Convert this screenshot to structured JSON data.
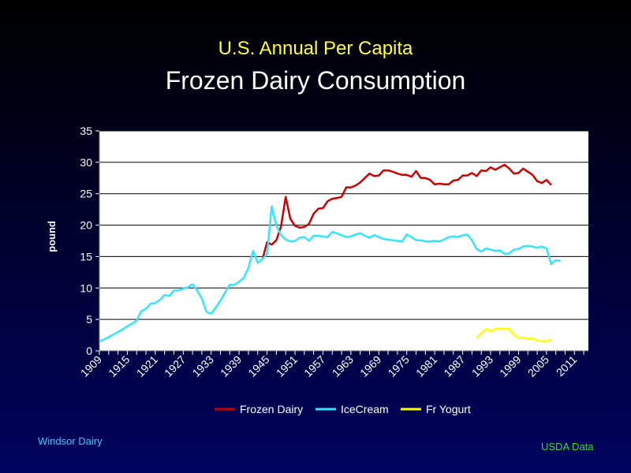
{
  "header": {
    "title": "U.S. Annual Per Capita",
    "subtitle": "Frozen Dairy Consumption"
  },
  "footer": {
    "left": "Windsor  Dairy",
    "right": "USDA  Data"
  },
  "chart_data": {
    "type": "line",
    "ylabel": "pound",
    "xlabel": "",
    "ylim": [
      0,
      35
    ],
    "yticks": [
      0,
      5,
      10,
      15,
      20,
      25,
      30,
      35
    ],
    "xlim": [
      1909,
      2014
    ],
    "xticks": [
      1909,
      1915,
      1921,
      1927,
      1933,
      1939,
      1945,
      1951,
      1957,
      1963,
      1969,
      1975,
      1981,
      1987,
      1993,
      1999,
      2005,
      2011
    ],
    "grid": "horizontal",
    "legend": "bottom",
    "background": "#ffffff",
    "series": [
      {
        "name": "Frozen Dairy",
        "color": "#cc0000",
        "x": [
          1944,
          1945,
          1946,
          1947,
          1948,
          1949,
          1950,
          1951,
          1952,
          1953,
          1954,
          1955,
          1956,
          1957,
          1958,
          1959,
          1960,
          1961,
          1962,
          1963,
          1964,
          1965,
          1966,
          1967,
          1968,
          1969,
          1970,
          1971,
          1972,
          1973,
          1974,
          1975,
          1976,
          1977,
          1978,
          1979,
          1980,
          1981,
          1982,
          1983,
          1984,
          1985,
          1986,
          1987,
          1988,
          1989,
          1990,
          1991,
          1992,
          1993,
          1994,
          1995,
          1996,
          1997,
          1998,
          1999,
          2000,
          2001,
          2002,
          2003,
          2004,
          2005,
          2006
        ],
        "y": [
          14.5,
          17.3,
          16.9,
          17.6,
          19.8,
          24.5,
          21.0,
          19.9,
          19.6,
          19.7,
          20.2,
          21.8,
          22.6,
          22.7,
          23.8,
          24.2,
          24.3,
          24.5,
          26.0,
          26.0,
          26.3,
          26.8,
          27.5,
          28.2,
          27.8,
          27.9,
          28.7,
          28.7,
          28.5,
          28.2,
          28.0,
          28.0,
          27.7,
          28.6,
          27.5,
          27.5,
          27.2,
          26.5,
          26.6,
          26.5,
          26.5,
          27.1,
          27.2,
          27.9,
          27.9,
          28.3,
          27.8,
          28.7,
          28.6,
          29.2,
          28.8,
          29.2,
          29.6,
          29.0,
          28.2,
          28.3,
          29.0,
          28.5,
          28.0,
          27.0,
          26.7,
          27.2,
          26.4
        ]
      },
      {
        "name": "IceCream",
        "color": "#33e5ff",
        "x": [
          1909,
          1910,
          1911,
          1912,
          1913,
          1914,
          1915,
          1916,
          1917,
          1918,
          1919,
          1920,
          1921,
          1922,
          1923,
          1924,
          1925,
          1926,
          1927,
          1928,
          1929,
          1930,
          1931,
          1932,
          1933,
          1934,
          1935,
          1936,
          1937,
          1938,
          1939,
          1940,
          1941,
          1942,
          1943,
          1944,
          1945,
          1946,
          1947,
          1948,
          1949,
          1950,
          1951,
          1952,
          1953,
          1954,
          1955,
          1956,
          1957,
          1958,
          1959,
          1960,
          1961,
          1962,
          1963,
          1964,
          1965,
          1966,
          1967,
          1968,
          1969,
          1970,
          1971,
          1972,
          1973,
          1974,
          1975,
          1976,
          1977,
          1978,
          1979,
          1980,
          1981,
          1982,
          1983,
          1984,
          1985,
          1986,
          1987,
          1988,
          1989,
          1990,
          1991,
          1992,
          1993,
          1994,
          1995,
          1996,
          1997,
          1998,
          1999,
          2000,
          2001,
          2002,
          2003,
          2004,
          2005,
          2006,
          2007,
          2008
        ],
        "y": [
          1.5,
          1.8,
          2.2,
          2.6,
          3.0,
          3.4,
          3.9,
          4.3,
          4.8,
          6.3,
          6.7,
          7.5,
          7.6,
          8.1,
          8.9,
          8.7,
          9.6,
          9.6,
          9.9,
          10.1,
          10.6,
          9.6,
          8.3,
          6.2,
          5.9,
          6.9,
          8.0,
          9.3,
          10.5,
          10.5,
          11.0,
          11.6,
          13.2,
          15.9,
          14.0,
          14.6,
          15.4,
          23.0,
          19.9,
          18.4,
          17.7,
          17.4,
          17.5,
          18.0,
          18.1,
          17.5,
          18.3,
          18.3,
          18.2,
          18.1,
          18.9,
          18.7,
          18.4,
          18.1,
          18.2,
          18.5,
          18.7,
          18.3,
          18.0,
          18.4,
          18.1,
          17.8,
          17.7,
          17.6,
          17.5,
          17.4,
          18.5,
          18.1,
          17.6,
          17.6,
          17.4,
          17.4,
          17.5,
          17.4,
          17.7,
          18.1,
          18.2,
          18.1,
          18.4,
          18.5,
          17.6,
          16.2,
          15.8,
          16.3,
          16.1,
          15.9,
          16.0,
          15.4,
          15.5,
          16.1,
          16.2,
          16.6,
          16.7,
          16.6,
          16.4,
          16.6,
          16.3,
          13.8,
          14.4,
          14.3
        ]
      },
      {
        "name": "Fr Yogurt",
        "color": "#ffff00",
        "x": [
          1990,
          1991,
          1992,
          1993,
          1994,
          1995,
          1996,
          1997,
          1998,
          1999,
          2000,
          2001,
          2002,
          2003,
          2004,
          2005,
          2006
        ],
        "y": [
          2.0,
          2.8,
          3.5,
          3.1,
          3.5,
          3.5,
          3.5,
          3.5,
          2.6,
          2.0,
          2.1,
          1.9,
          2.0,
          1.6,
          1.5,
          1.5,
          1.8
        ]
      }
    ]
  }
}
